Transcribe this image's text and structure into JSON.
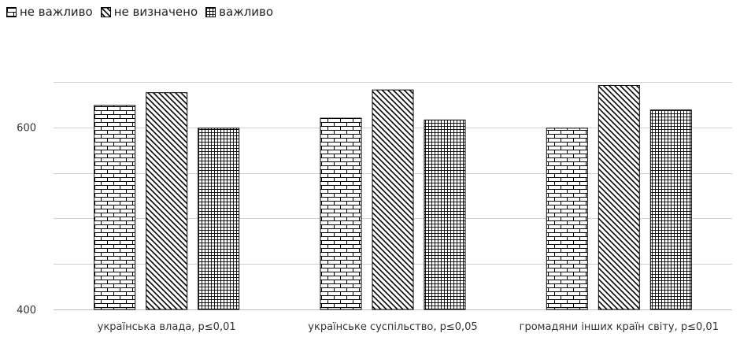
{
  "chart_data": {
    "type": "bar",
    "categories": [
      "українська влада, p≤0,01",
      "українське суспільство, p≤0,05",
      "громадяни інших країн світу, p≤0,01"
    ],
    "series": [
      {
        "name": "не важливо",
        "pattern": "brick",
        "values": [
          624,
          610,
          599
        ]
      },
      {
        "name": "не визначено",
        "pattern": "diagonal",
        "values": [
          638,
          641,
          646
        ]
      },
      {
        "name": "важливо",
        "pattern": "grid",
        "values": [
          599,
          608,
          619
        ]
      }
    ],
    "ylim": [
      400,
      700
    ],
    "yticks": [
      400,
      600
    ],
    "grid": true,
    "legend_position": "top-left",
    "colors": {
      "stroke": "#000000",
      "fill": "#ffffff",
      "gridline": "#d0d0d0",
      "text": "#333333"
    }
  }
}
